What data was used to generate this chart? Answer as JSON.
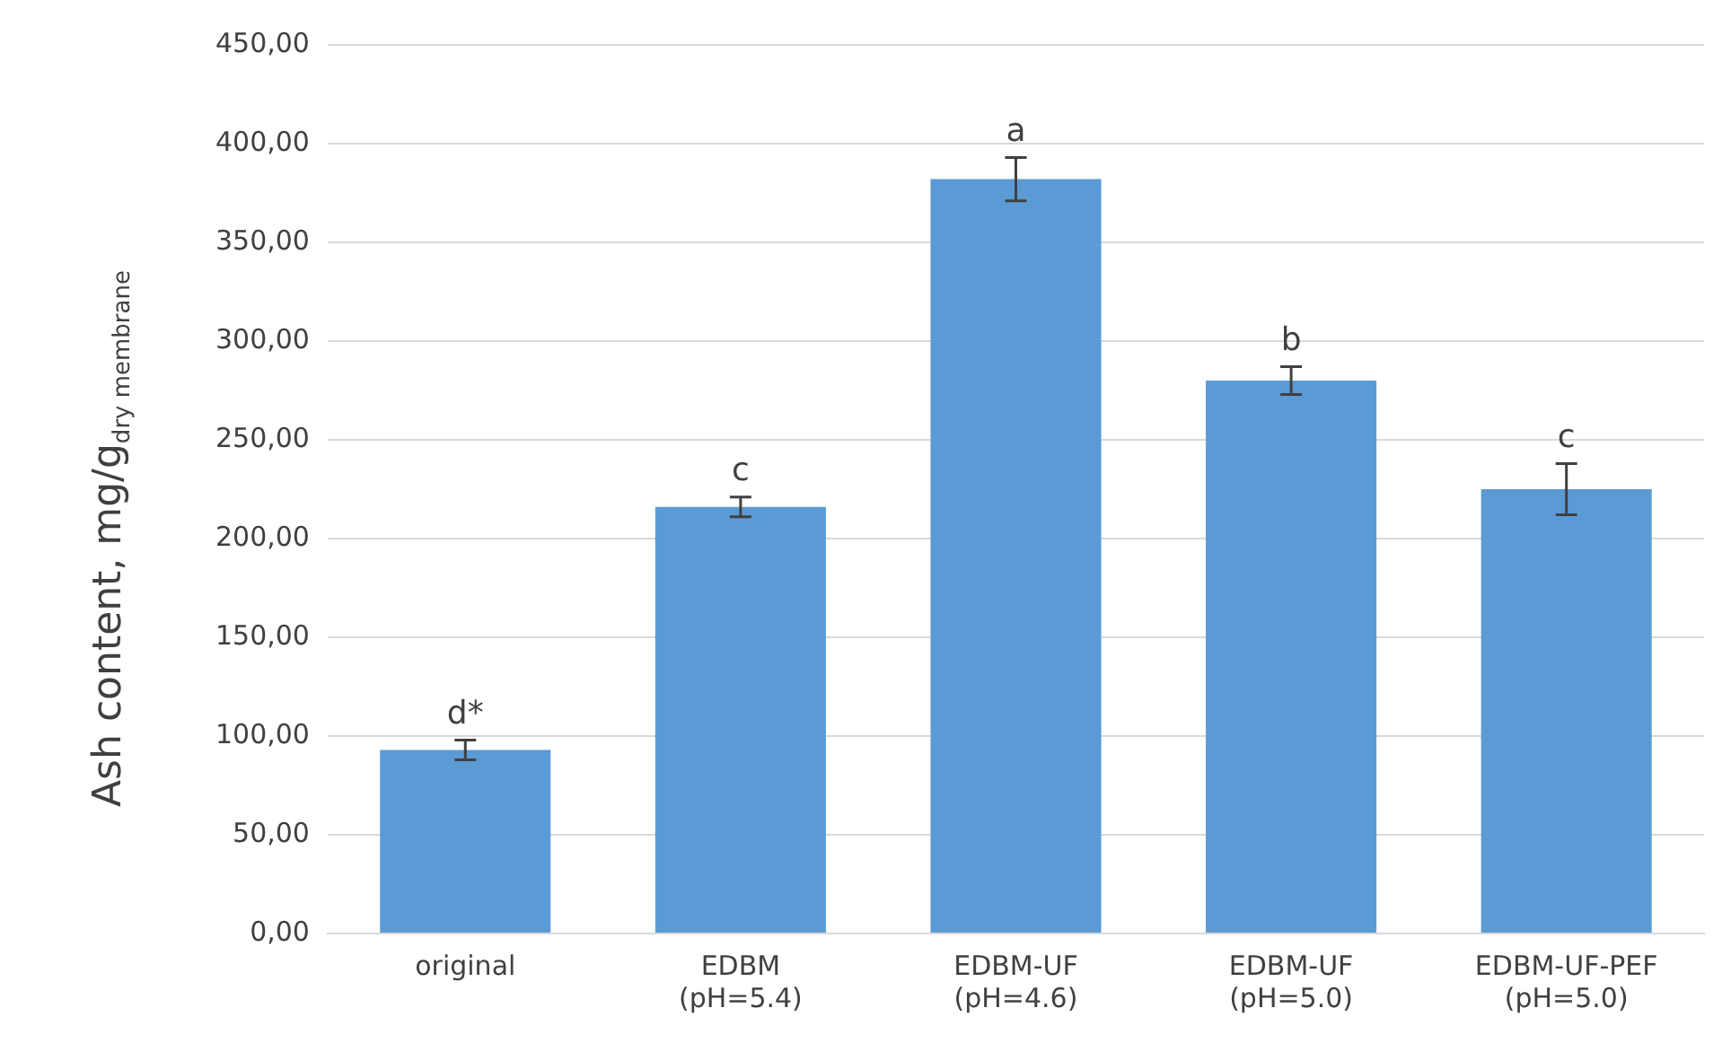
{
  "chart_data": {
    "type": "bar",
    "ylabel": "Ash content, mg/g$_{dry membrane}$",
    "categories": [
      "original",
      "EDBM\n(pH=5.4)",
      "EDBM-UF\n(pH=4.6)",
      "EDBM-UF\n(pH=5.0)",
      "EDBM-UF-PEF\n(pH=5.0)"
    ],
    "values": [
      93,
      216,
      382,
      280,
      225
    ],
    "errors": [
      5,
      5,
      11,
      7,
      13
    ],
    "color": "#5b9bd5",
    "ylim": [
      0,
      450
    ],
    "yticks": [
      {
        "value": 0,
        "label": "0,00"
      },
      {
        "value": 50,
        "label": "50,00"
      },
      {
        "value": 100,
        "label": "100,00"
      },
      {
        "value": 150,
        "label": "150,00"
      },
      {
        "value": 200,
        "label": "200,00"
      },
      {
        "value": 250,
        "label": "250,00"
      },
      {
        "value": 300,
        "label": "300,00"
      },
      {
        "value": 350,
        "label": "350,00"
      },
      {
        "value": 400,
        "label": "400,00"
      },
      {
        "value": 450,
        "label": "450,00"
      }
    ],
    "grid": "y",
    "annotations": [
      {
        "text": "d*",
        "x": "original",
        "y": 98
      },
      {
        "text": "c",
        "x": "EDBM\n(pH=5.4)",
        "y": 221
      },
      {
        "text": "a",
        "x": "EDBM-UF\n(pH=4.6)",
        "y": 393
      },
      {
        "text": "b",
        "x": "EDBM-UF\n(pH=5.0)",
        "y": 287
      },
      {
        "text": "c",
        "x": "EDBM-UF-PEF\n(pH=5.0)",
        "y": 238
      }
    ]
  }
}
